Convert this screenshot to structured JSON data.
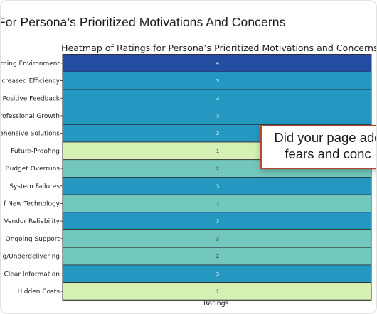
{
  "page": {
    "title": "For Persona’s Prioritized Motivations And Concerns"
  },
  "callout": {
    "text": "Did your page add\nfears and conc"
  },
  "chart_data": {
    "type": "heatmap",
    "title": "Heatmap of Ratings for Persona’s Prioritized Motivations and Concerns",
    "xlabel": "Ratings",
    "ylabel": "",
    "rows": [
      "rning Environment",
      "creased Efficiency",
      "Positive Feedback",
      "rofessional Growth",
      "ehensive Solutions",
      "Future-Proofing",
      "Budget Overruns",
      "System Failures",
      "f New Technology",
      "Vendor Reliability",
      "Ongoing Support",
      "g/Underdelivering",
      "Clear Information",
      "Hidden Costs"
    ],
    "values": [
      4,
      3,
      3,
      3,
      3,
      1,
      2,
      3,
      2,
      3,
      2,
      2,
      3,
      1
    ],
    "colors": {
      "1": "#d6efb3",
      "2": "#73c8bd",
      "3": "#2498c1",
      "4": "#234da0"
    },
    "grid": false,
    "legend": "none"
  }
}
